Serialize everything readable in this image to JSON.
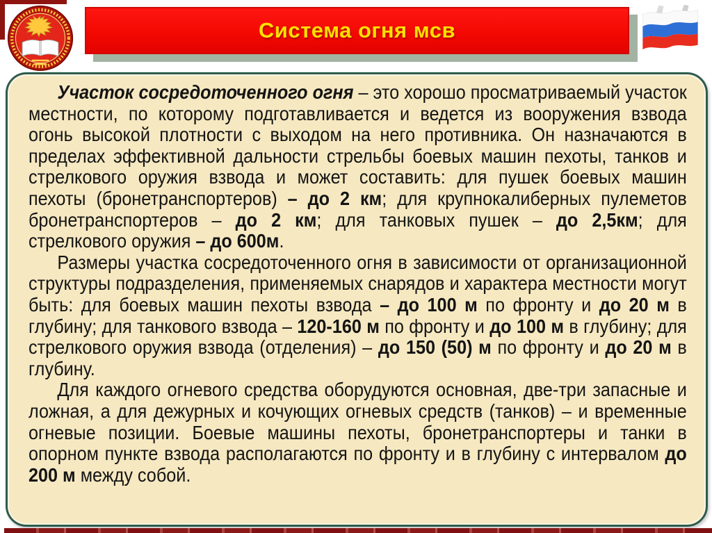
{
  "header": {
    "title": "Система огня мсв",
    "banner_color": "#f40802",
    "banner_border_color": "#cf0a05",
    "banner_shadow_color": "#a2b2a3",
    "title_color": "#ffdf00"
  },
  "icons": {
    "emblem": "military-academy-emblem",
    "flag": "russian-flag"
  },
  "decor": {
    "corner_bracket_color": "#8e1410",
    "bottom_bar_color": "#7f1113",
    "flag_colors": [
      "#fafafa",
      "#2e6fd6",
      "#e82c1e"
    ]
  },
  "content": {
    "box_background": "#f6e8c1",
    "box_border_color": "#2f5b4d",
    "text_color": "#141414",
    "paragraphs": [
      {
        "runs": [
          {
            "t": "Участок сосредоточенного огня",
            "b": true,
            "i": true
          },
          {
            "t": " – это хорошо просматриваемый участок местности, по которому подготавливается и ведется из вооружения взвода огонь высокой плотности с выходом на него противника. Он назначаются в пределах эффективной дальности стрельбы боевых машин пехоты, танков и стрелкового оружия взвода и может составить: для пушек боевых машин пехоты (бронетранспортеров) "
          },
          {
            "t": "– до 2 км",
            "b": true
          },
          {
            "t": "; для крупнокалиберных пулеметов бронетранспортеров – "
          },
          {
            "t": "до 2 км",
            "b": true
          },
          {
            "t": "; для танковых пушек – "
          },
          {
            "t": "до 2,5км",
            "b": true
          },
          {
            "t": "; для стрелкового оружия "
          },
          {
            "t": "– до 600м",
            "b": true
          },
          {
            "t": "."
          }
        ]
      },
      {
        "runs": [
          {
            "t": "Размеры участка сосредоточенного огня в зависимости от организационной структуры подразделения, применяемых снарядов и характера местности могут быть: для боевых машин пехоты взвода "
          },
          {
            "t": "– до 100 м",
            "b": true
          },
          {
            "t": " по фронту и "
          },
          {
            "t": "до 20 м",
            "b": true
          },
          {
            "t": " в глубину; для танкового взвода – "
          },
          {
            "t": "120-160 м",
            "b": true
          },
          {
            "t": " по фронту и "
          },
          {
            "t": "до 100 м",
            "b": true
          },
          {
            "t": " в глубину; для стрелкового оружия взвода (отделения) – "
          },
          {
            "t": "до 150 (50) м",
            "b": true
          },
          {
            "t": " по фронту и "
          },
          {
            "t": "до 20 м",
            "b": true
          },
          {
            "t": " в глубину."
          }
        ]
      },
      {
        "runs": [
          {
            "t": "Для каждого огневого средства оборудуются основная, две-три запасные и ложная, а для дежурных и кочующих огневых средств (танков) – и временные огневые позиции. Боевые машины пехоты, бронетранспортеры и танки в опорном пункте взвода располагаются по фронту и в глубину с интервалом "
          },
          {
            "t": "до 200 м",
            "b": true
          },
          {
            "t": " между собой."
          }
        ]
      }
    ]
  }
}
